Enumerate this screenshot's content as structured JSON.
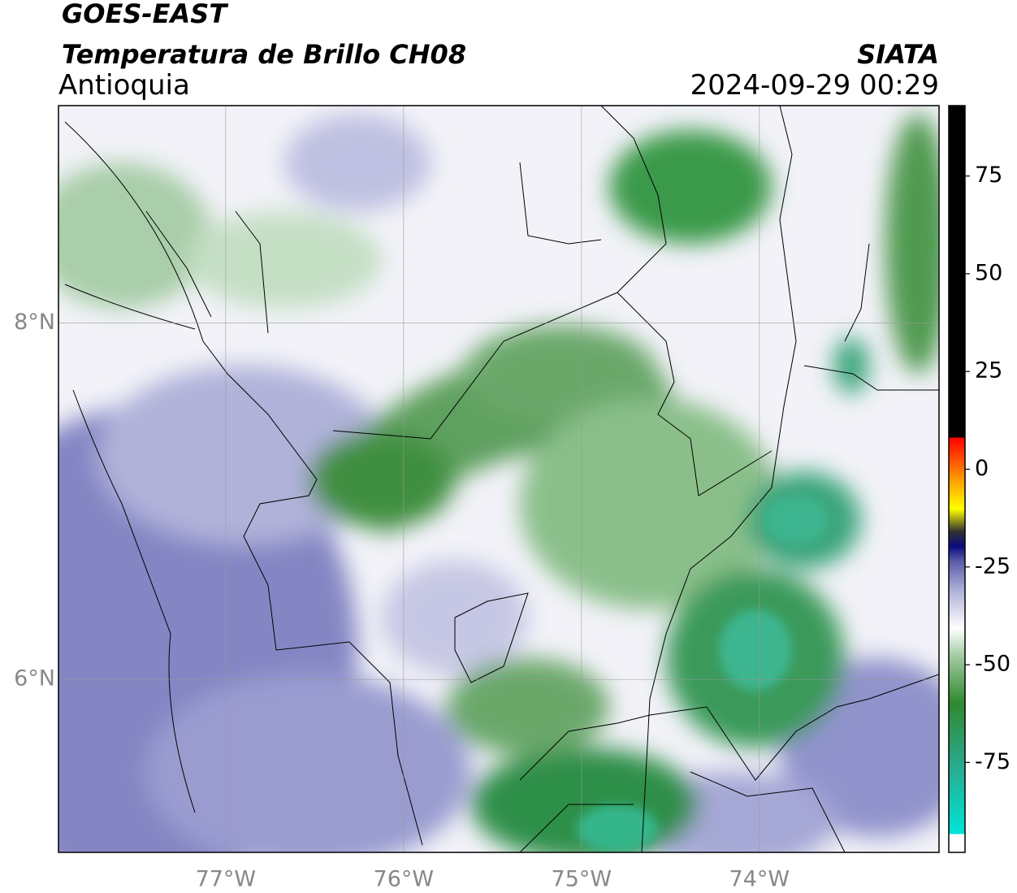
{
  "header": {
    "title": "GOES-EAST",
    "subtitle": "Temperatura de Brillo CH08",
    "region": "Antioquia",
    "source": "SIATA",
    "timestamp": "2024-09-29 00:29"
  },
  "map": {
    "xlim": [
      -77.94,
      -72.99
    ],
    "ylim": [
      5.03,
      9.22
    ],
    "xticks": [
      {
        "value": -77,
        "label": "77°W"
      },
      {
        "value": -76,
        "label": "76°W"
      },
      {
        "value": -75,
        "label": "75°W"
      },
      {
        "value": -74,
        "label": "74°W"
      }
    ],
    "yticks": [
      {
        "value": 8,
        "label": "8°N"
      },
      {
        "value": 6,
        "label": "6°N"
      }
    ]
  },
  "colorbar": {
    "lim": [
      -98,
      93
    ],
    "ticks": [
      75,
      50,
      25,
      0,
      -25,
      -50,
      -75
    ]
  }
}
